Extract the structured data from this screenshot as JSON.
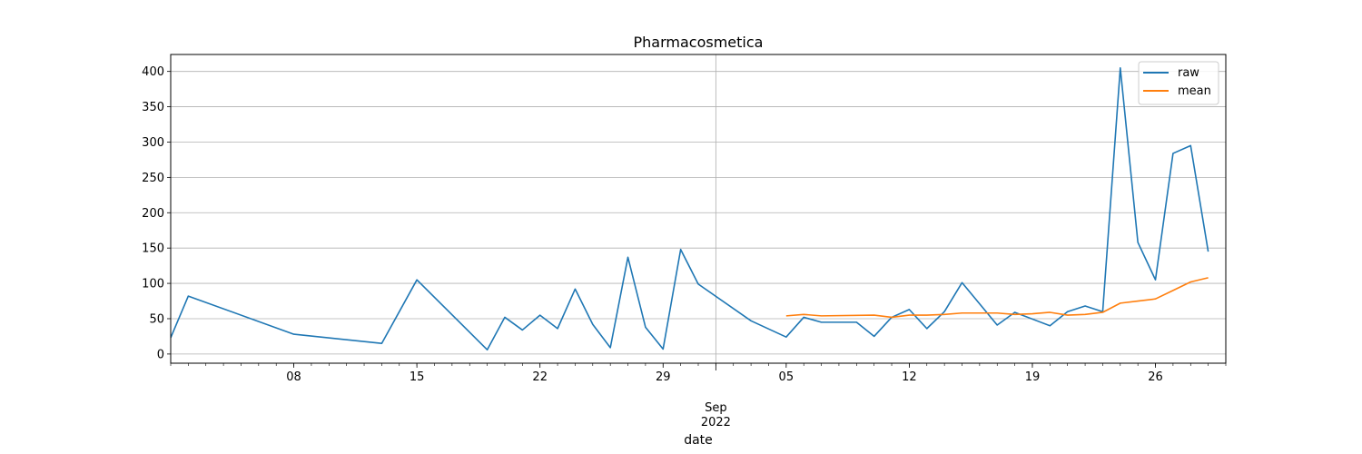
{
  "chart_data": {
    "type": "line",
    "title": "Pharmacosmetica",
    "xlabel": "date",
    "ylabel": "",
    "ylim": [
      -13,
      424
    ],
    "xlim": [
      "2022-08-01",
      "2022-09-30"
    ],
    "grid": true,
    "legend_position": "top-right",
    "x_ticks": [
      {
        "date": "2022-08-08",
        "label": "08"
      },
      {
        "date": "2022-08-15",
        "label": "15"
      },
      {
        "date": "2022-08-22",
        "label": "22"
      },
      {
        "date": "2022-08-29",
        "label": "29"
      },
      {
        "date": "2022-09-05",
        "label": "05"
      },
      {
        "date": "2022-09-12",
        "label": "12"
      },
      {
        "date": "2022-09-19",
        "label": "19"
      },
      {
        "date": "2022-09-26",
        "label": "26"
      }
    ],
    "month_tick": {
      "date": "2022-09-01",
      "label": "Sep",
      "year_label": "2022"
    },
    "y_ticks": [
      0,
      50,
      100,
      150,
      200,
      250,
      300,
      350,
      400
    ],
    "series": [
      {
        "name": "raw",
        "color": "#1f77b4",
        "points": [
          [
            "2022-08-01",
            23
          ],
          [
            "2022-08-02",
            82
          ],
          [
            "2022-08-08",
            28
          ],
          [
            "2022-08-13",
            15
          ],
          [
            "2022-08-15",
            105
          ],
          [
            "2022-08-19",
            6
          ],
          [
            "2022-08-20",
            52
          ],
          [
            "2022-08-21",
            34
          ],
          [
            "2022-08-22",
            55
          ],
          [
            "2022-08-23",
            36
          ],
          [
            "2022-08-24",
            92
          ],
          [
            "2022-08-25",
            42
          ],
          [
            "2022-08-26",
            9
          ],
          [
            "2022-08-27",
            137
          ],
          [
            "2022-08-28",
            38
          ],
          [
            "2022-08-29",
            7
          ],
          [
            "2022-08-30",
            148
          ],
          [
            "2022-08-31",
            99
          ],
          [
            "2022-09-03",
            47
          ],
          [
            "2022-09-05",
            24
          ],
          [
            "2022-09-06",
            52
          ],
          [
            "2022-09-07",
            45
          ],
          [
            "2022-09-09",
            45
          ],
          [
            "2022-09-10",
            25
          ],
          [
            "2022-09-11",
            52
          ],
          [
            "2022-09-12",
            63
          ],
          [
            "2022-09-13",
            36
          ],
          [
            "2022-09-14",
            60
          ],
          [
            "2022-09-15",
            101
          ],
          [
            "2022-09-17",
            41
          ],
          [
            "2022-09-18",
            59
          ],
          [
            "2022-09-20",
            40
          ],
          [
            "2022-09-21",
            60
          ],
          [
            "2022-09-22",
            68
          ],
          [
            "2022-09-23",
            60
          ],
          [
            "2022-09-24",
            405
          ],
          [
            "2022-09-25",
            158
          ],
          [
            "2022-09-26",
            105
          ],
          [
            "2022-09-27",
            284
          ],
          [
            "2022-09-28",
            295
          ],
          [
            "2022-09-29",
            145
          ]
        ]
      },
      {
        "name": "mean",
        "color": "#ff7f0e",
        "points": [
          [
            "2022-09-05",
            54
          ],
          [
            "2022-09-06",
            56
          ],
          [
            "2022-09-07",
            54
          ],
          [
            "2022-09-10",
            55
          ],
          [
            "2022-09-11",
            52
          ],
          [
            "2022-09-12",
            55
          ],
          [
            "2022-09-13",
            55
          ],
          [
            "2022-09-14",
            56
          ],
          [
            "2022-09-15",
            58
          ],
          [
            "2022-09-17",
            58
          ],
          [
            "2022-09-18",
            56
          ],
          [
            "2022-09-19",
            57
          ],
          [
            "2022-09-20",
            59
          ],
          [
            "2022-09-21",
            55
          ],
          [
            "2022-09-22",
            56
          ],
          [
            "2022-09-23",
            59
          ],
          [
            "2022-09-24",
            72
          ],
          [
            "2022-09-25",
            75
          ],
          [
            "2022-09-26",
            78
          ],
          [
            "2022-09-27",
            90
          ],
          [
            "2022-09-28",
            102
          ],
          [
            "2022-09-29",
            108
          ]
        ]
      }
    ]
  }
}
